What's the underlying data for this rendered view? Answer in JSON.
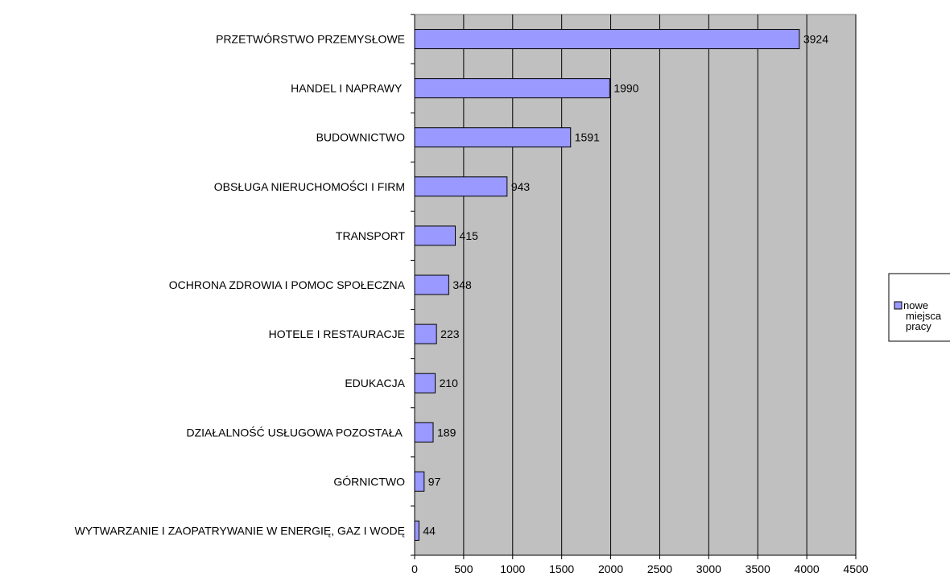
{
  "chart_data": {
    "type": "bar",
    "orientation": "horizontal",
    "categories": [
      "PRZETWÓRSTWO PRZEMYSŁOWE",
      "HANDEL I NAPRAWY ",
      "BUDOWNICTWO",
      "OBSŁUGA NIERUCHOMOŚCI I FIRM",
      "TRANSPORT",
      "OCHRONA ZDROWIA I POMOC SPOŁECZNA",
      "HOTELE I RESTAURACJE",
      "EDUKACJA",
      "DZIAŁALNOŚĆ USŁUGOWA POZOSTAŁA ",
      "GÓRNICTWO",
      "WYTWARZANIE I ZAOPATRYWANIE W ENERGIĘ, GAZ I WODĘ"
    ],
    "series": [
      {
        "name": "nowe miejsca pracy",
        "values": [
          3924,
          1990,
          1591,
          943,
          415,
          348,
          223,
          210,
          189,
          97,
          44
        ]
      }
    ],
    "xticks": [
      0,
      500,
      1000,
      1500,
      2000,
      2500,
      3000,
      3500,
      4000,
      4500
    ],
    "xlim": [
      0,
      4500
    ],
    "grid": "vertical",
    "legend": "right",
    "colors": {
      "bar": "#9999ff",
      "plot_background": "#c0c0c0",
      "bar_border": "#000000"
    }
  }
}
